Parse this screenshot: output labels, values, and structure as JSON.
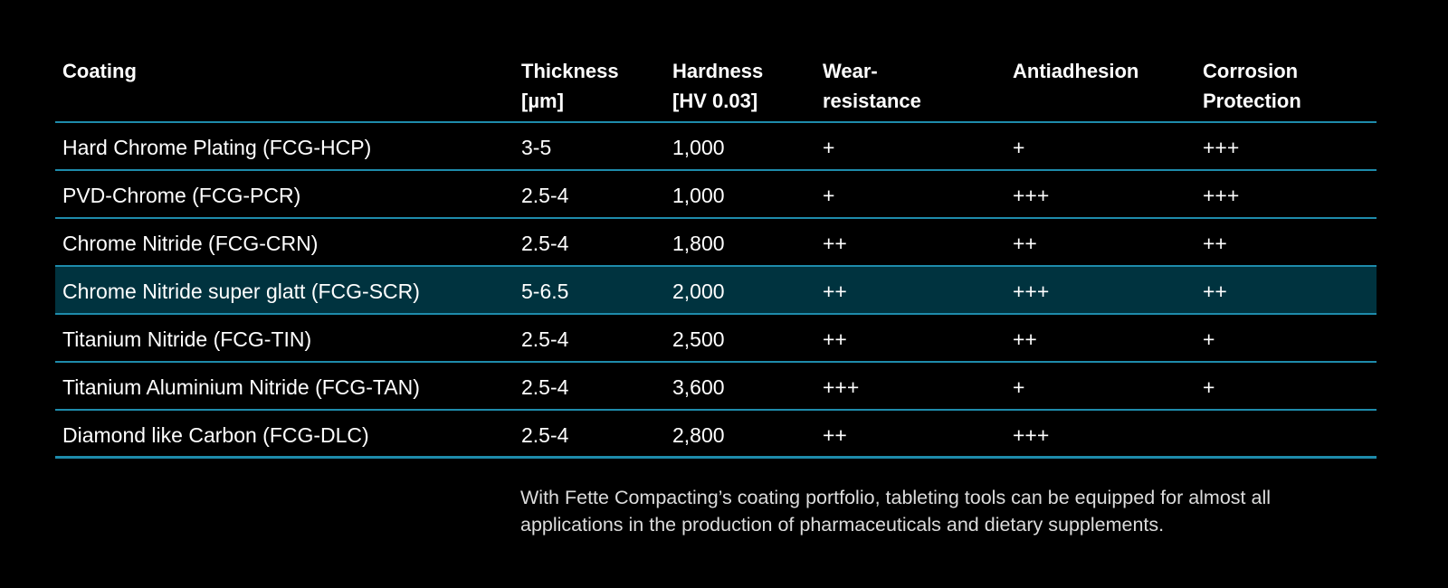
{
  "colors": {
    "background": "#000000",
    "divider": "#1e8bab",
    "highlight_row": "#00333f",
    "text": "#ffffff"
  },
  "table": {
    "headers": [
      "Coating",
      "Thickness [µm]",
      "Hardness [HV 0.03]",
      "Wear-resistance",
      "Antiadhesion",
      "Corrosion Protection"
    ],
    "highlighted_row_index": 3,
    "rows": [
      [
        "Hard Chrome Plating (FCG-HCP)",
        "3-5",
        "1,000",
        "+",
        "+",
        "+++"
      ],
      [
        "PVD-Chrome (FCG-PCR)",
        "2.5-4",
        "1,000",
        "+",
        "+++",
        "+++"
      ],
      [
        "Chrome Nitride (FCG-CRN)",
        "2.5-4",
        "1,800",
        "++",
        "++",
        "++"
      ],
      [
        "Chrome Nitride super glatt (FCG-SCR)",
        "5-6.5",
        "2,000",
        "++",
        "+++",
        "++"
      ],
      [
        "Titanium Nitride (FCG-TIN)",
        "2.5-4",
        "2,500",
        "++",
        "++",
        "+"
      ],
      [
        "Titanium Aluminium Nitride (FCG-TAN)",
        "2.5-4",
        "3,600",
        "+++",
        "+",
        "+"
      ],
      [
        "Diamond like Carbon (FCG-DLC)",
        "2.5-4",
        "2,800",
        "++",
        "+++",
        ""
      ]
    ]
  },
  "note": "With Fette Compacting’s coating portfolio, tableting tools can be equipped for almost all applications in the production of pharmaceuticals and dietary supplements."
}
